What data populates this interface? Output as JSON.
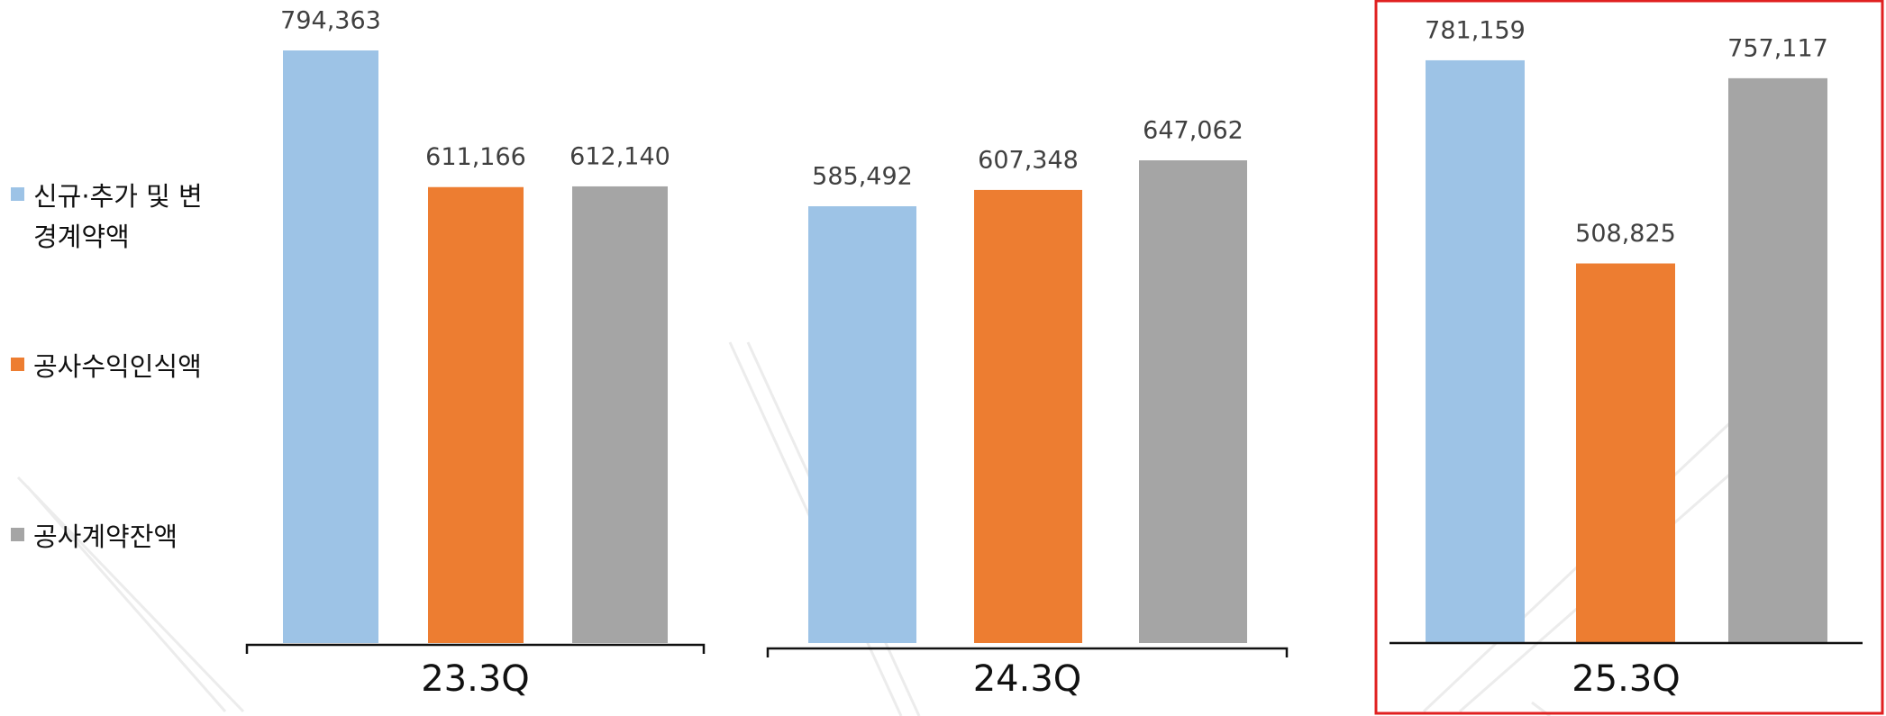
{
  "chart_data": {
    "type": "bar",
    "categories": [
      "23.3Q",
      "24.3Q",
      "25.3Q"
    ],
    "series": [
      {
        "name": "신규·추가 및 변경계약액",
        "color": "#9dc3e6",
        "values": [
          794363,
          585492,
          781159
        ],
        "value_labels": [
          "794,363",
          "585,492",
          "781,159"
        ]
      },
      {
        "name": "공사수익인식액",
        "color": "#ed7d31",
        "values": [
          611166,
          607348,
          508825
        ],
        "value_labels": [
          "611,166",
          "607,348",
          "508,825"
        ]
      },
      {
        "name": "공사계약잔액",
        "color": "#a5a5a5",
        "values": [
          612140,
          647062,
          757117
        ],
        "value_labels": [
          "612,140",
          "647,062",
          "757,117"
        ]
      }
    ],
    "highlight_color": "#e02020"
  }
}
